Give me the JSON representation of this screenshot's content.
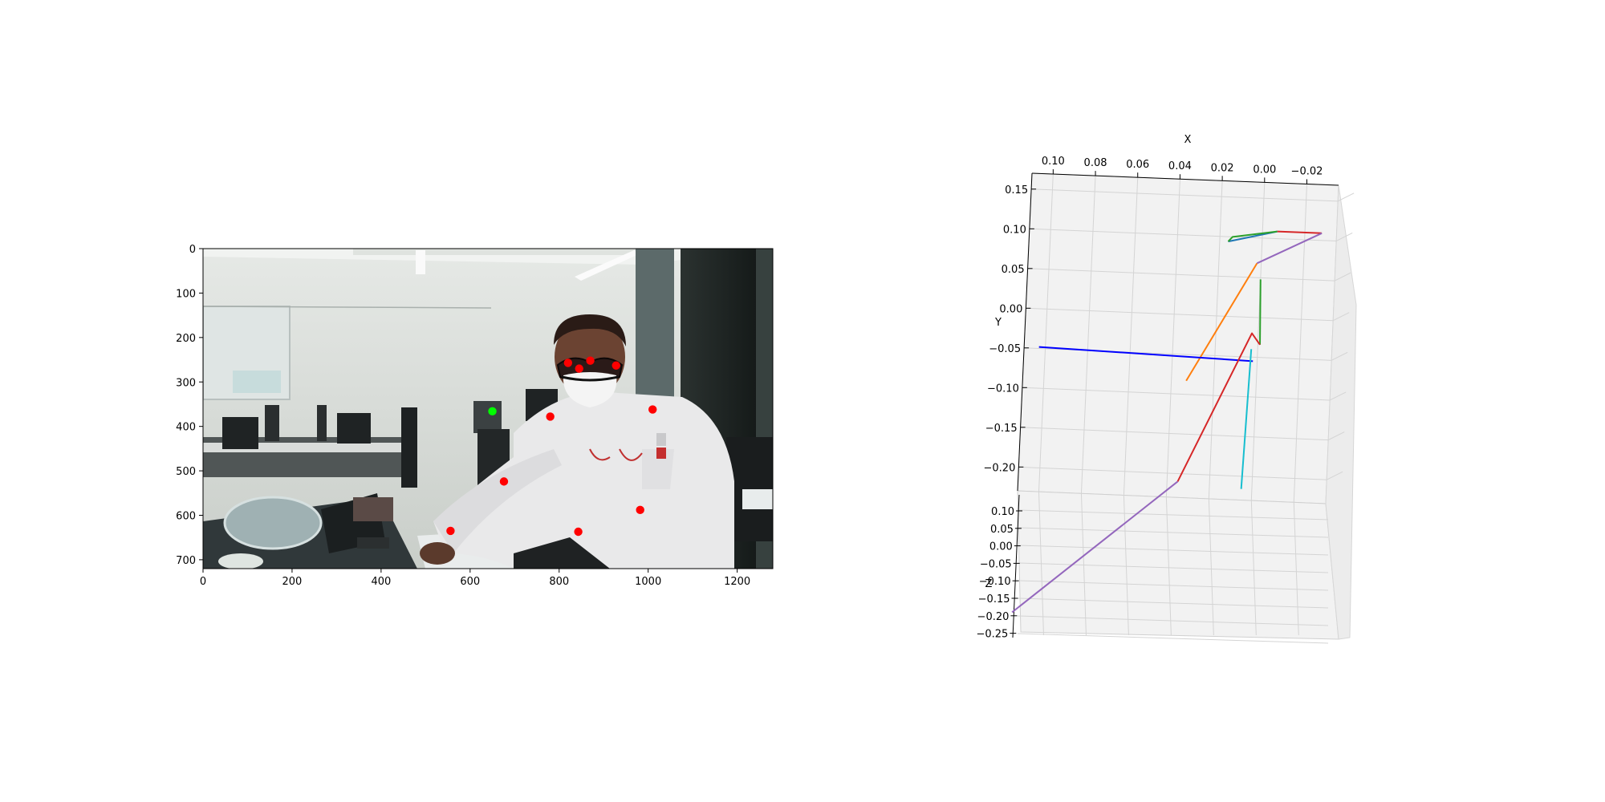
{
  "figure": {
    "background": "#ffffff"
  },
  "chart_data": [
    {
      "type": "scatter",
      "xlabel": "",
      "ylabel": "",
      "xlim": [
        0,
        1280
      ],
      "ylim": [
        720,
        0
      ],
      "xticks": [
        "0",
        "200",
        "400",
        "600",
        "800",
        "1000",
        "1200"
      ],
      "yticks": [
        "0",
        "100",
        "200",
        "300",
        "400",
        "500",
        "600",
        "700"
      ],
      "background_image": "office-photo-seated-person-white-hoodie-face-mask",
      "series": [
        {
          "color": "#ff0000",
          "points": [
            [
              820,
              257
            ],
            [
              845,
              270
            ],
            [
              870,
              252
            ],
            [
              928,
              263
            ],
            [
              780,
              378
            ],
            [
              1010,
              362
            ],
            [
              676,
              524
            ],
            [
              982,
              588
            ],
            [
              556,
              635
            ],
            [
              843,
              637
            ]
          ]
        },
        {
          "color": "#00ff00",
          "points": [
            [
              650,
              366
            ]
          ]
        }
      ]
    },
    {
      "type": "line",
      "projection": "3d",
      "xlabel": "X",
      "ylabel": "Y",
      "zlabel": "Z",
      "xlim": [
        0.11,
        -0.035
      ],
      "ylim": [
        -0.23,
        0.17
      ],
      "zlim": [
        -0.25,
        0.1
      ],
      "xticks": [
        "0.10",
        "0.08",
        "0.06",
        "0.04",
        "0.02",
        "0.00",
        "−0.02"
      ],
      "yticks": [
        "0.15",
        "0.10",
        "0.05",
        "0.00",
        "−0.05",
        "−0.10",
        "−0.15",
        "−0.20"
      ],
      "zticks": [
        "0.10",
        "0.05",
        "0.00",
        "−0.05",
        "−0.10",
        "−0.15",
        "−0.20",
        "−0.25"
      ],
      "grid": true,
      "segments": [
        {
          "color": "#1f77b4",
          "x": [
            0.016,
            -0.007
          ],
          "y": [
            0.094,
            0.109
          ],
          "z": [
            0,
            0
          ]
        },
        {
          "color": "#2ca02c",
          "x": [
            0.016,
            0.014,
            -0.007
          ],
          "y": [
            0.094,
            0.1,
            0.109
          ],
          "z": [
            0,
            0,
            0
          ]
        },
        {
          "color": "#d62728",
          "x": [
            -0.007,
            -0.028
          ],
          "y": [
            0.109,
            0.109
          ],
          "z": [
            0,
            0
          ]
        },
        {
          "color": "#9467bd",
          "x": [
            -0.028,
            0.002
          ],
          "y": [
            0.109,
            0.068
          ],
          "z": [
            0,
            0
          ]
        },
        {
          "color": "#ff7f0e",
          "x": [
            0.002,
            0.033
          ],
          "y": [
            0.068,
            -0.083
          ],
          "z": [
            0,
            0
          ]
        },
        {
          "color": "#2ca02c",
          "x": [
            0.0,
            -0.001
          ],
          "y": [
            0.048,
            -0.034
          ],
          "z": [
            0,
            0
          ]
        },
        {
          "color": "#0000ff",
          "x": [
            0.103,
            0.002
          ],
          "y": [
            -0.048,
            -0.055
          ],
          "z": [
            0,
            0
          ]
        },
        {
          "color": "#d62728",
          "x": [
            -0.001,
            0.003,
            0.035
          ],
          "y": [
            -0.034,
            -0.02,
            -0.21
          ],
          "z": [
            0,
            0,
            0
          ]
        },
        {
          "color": "#17becf",
          "x": [
            0.003,
            0.005
          ],
          "y": [
            -0.04,
            -0.216
          ],
          "z": [
            0,
            0
          ]
        },
        {
          "color": "#9467bd",
          "x": [
            0.035,
            0.11
          ],
          "y": [
            -0.21,
            -0.383
          ],
          "z": [
            0,
            0
          ]
        }
      ]
    }
  ]
}
